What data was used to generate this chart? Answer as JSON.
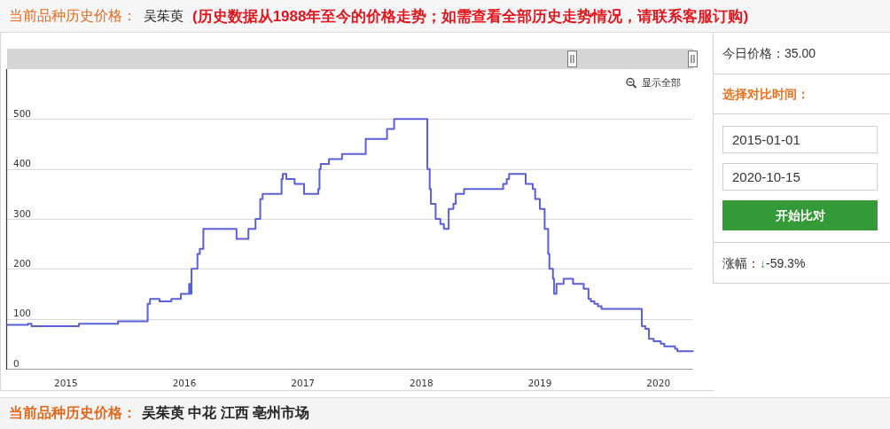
{
  "chart_data": {
    "type": "step",
    "title": "吴茱萸",
    "subtitle": "(历史数据从1988年至今的价格走势；如需查看全部历史走势情况，请联系客服订购)",
    "x": [
      2014.5,
      2014.68,
      2014.71,
      2015.11,
      2015.44,
      2015.69,
      2015.71,
      2015.79,
      2015.89,
      2015.97,
      2016.04,
      2016.05,
      2016.06,
      2016.11,
      2016.13,
      2016.16,
      2016.44,
      2016.54,
      2016.6,
      2016.64,
      2016.66,
      2016.82,
      2016.83,
      2016.86,
      2016.93,
      2017.01,
      2017.13,
      2017.14,
      2017.15,
      2017.22,
      2017.33,
      2017.53,
      2017.71,
      2017.77,
      2018.05,
      2018.07,
      2018.08,
      2018.12,
      2018.16,
      2018.19,
      2018.23,
      2018.27,
      2018.29,
      2018.36,
      2018.69,
      2018.72,
      2018.74,
      2018.88,
      2018.94,
      2018.96,
      2019.0,
      2019.04,
      2019.07,
      2019.08,
      2019.11,
      2019.12,
      2019.14,
      2019.2,
      2019.28,
      2019.37,
      2019.41,
      2019.43,
      2019.46,
      2019.49,
      2019.52,
      2019.86,
      2019.89,
      2019.92,
      2019.96,
      2020.02,
      2020.05,
      2020.14,
      2020.16,
      2020.29
    ],
    "series": [
      {
        "color": "#5b5fd8",
        "values": [
          88,
          90,
          85,
          90,
          95,
          130,
          140,
          135,
          140,
          150,
          170,
          150,
          200,
          230,
          240,
          280,
          260,
          280,
          300,
          340,
          350,
          380,
          390,
          380,
          370,
          350,
          360,
          400,
          410,
          420,
          430,
          460,
          480,
          500,
          400,
          360,
          330,
          300,
          290,
          280,
          320,
          330,
          350,
          360,
          370,
          380,
          390,
          370,
          360,
          340,
          320,
          280,
          230,
          200,
          180,
          150,
          170,
          180,
          170,
          160,
          140,
          135,
          130,
          125,
          120,
          85,
          80,
          60,
          55,
          50,
          45,
          40,
          35,
          35
        ]
      }
    ],
    "xlim": [
      2014.5,
      2020.29
    ],
    "xticks": [
      2015,
      2016,
      2017,
      2018,
      2019,
      2020
    ],
    "ylim": [
      0,
      600
    ],
    "yticks": [
      0,
      100,
      200,
      300,
      400,
      500
    ],
    "grid": "y",
    "annotations": [
      "当前品种历史价格：",
      "显示全部",
      "今日价格：35.00",
      "选择对比时间：",
      "2015-01-01",
      "2020-10-15",
      "开始比对",
      "涨幅：",
      "↓",
      "-59.3%",
      "当前品种历史价格：",
      "吴茱萸 中花 江西 亳州市场"
    ]
  }
}
